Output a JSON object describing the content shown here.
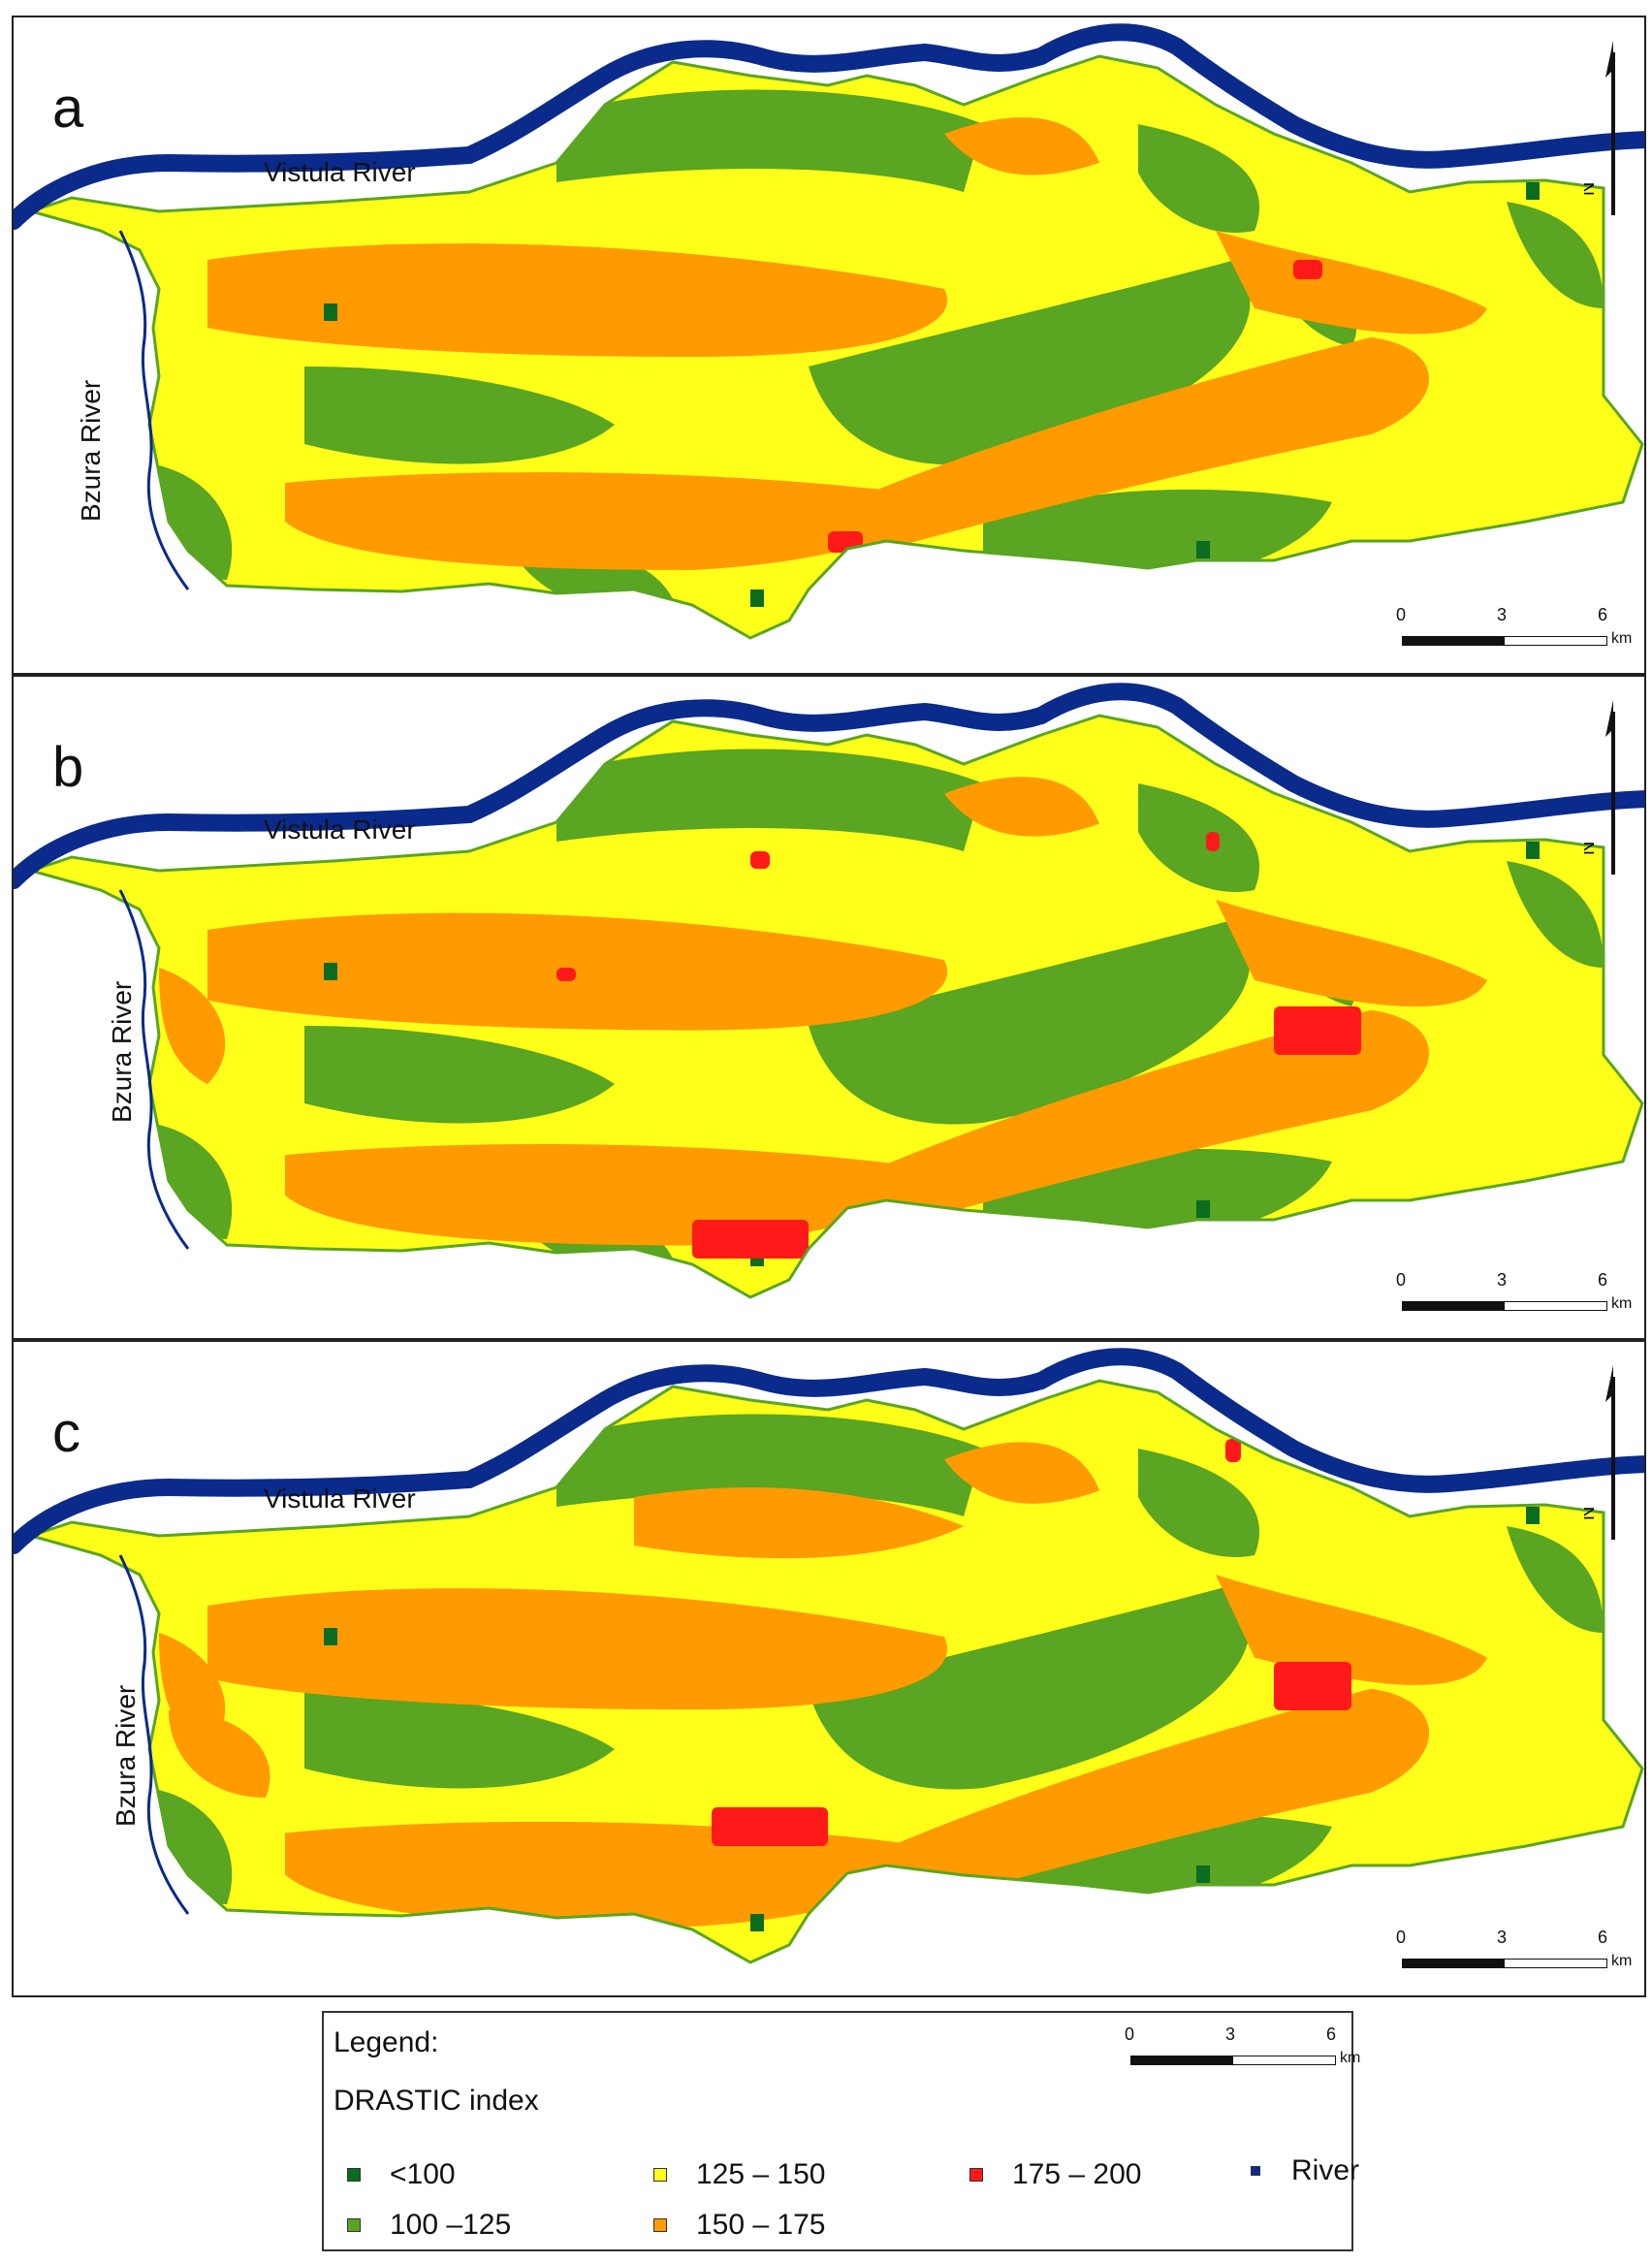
{
  "panels": [
    {
      "letter": "a",
      "vistula_label": "Vistula River",
      "bzura_label": "Bzura River",
      "north_label": "N"
    },
    {
      "letter": "b",
      "vistula_label": "Vistula River",
      "bzura_label": "Bzura River",
      "north_label": "N"
    },
    {
      "letter": "c",
      "vistula_label": "Vistula River",
      "bzura_label": "Bzura River",
      "north_label": "N"
    }
  ],
  "scalebar": {
    "t0": "0",
    "t1": "3",
    "t2": "6",
    "unit": "km"
  },
  "legend": {
    "title": "Legend:",
    "subtitle": "DRASTIC index",
    "items": [
      {
        "label": "<100",
        "color": "#0b6b1f"
      },
      {
        "label": "100 –125",
        "color": "#5aa521"
      },
      {
        "label": "125 – 150",
        "color": "#ffff1a"
      },
      {
        "label": "150 – 175",
        "color": "#ff9a00"
      },
      {
        "label": "175 – 200",
        "color": "#ff1a1a"
      },
      {
        "label": "River",
        "color": "#0a2a8c"
      }
    ]
  },
  "colors": {
    "lt100": "#0b6b1f",
    "c100_125": "#5aa521",
    "c125_150": "#ffff1a",
    "c150_175": "#ff9a00",
    "c175_200": "#ff1a1a",
    "river": "#0a2a8c"
  }
}
